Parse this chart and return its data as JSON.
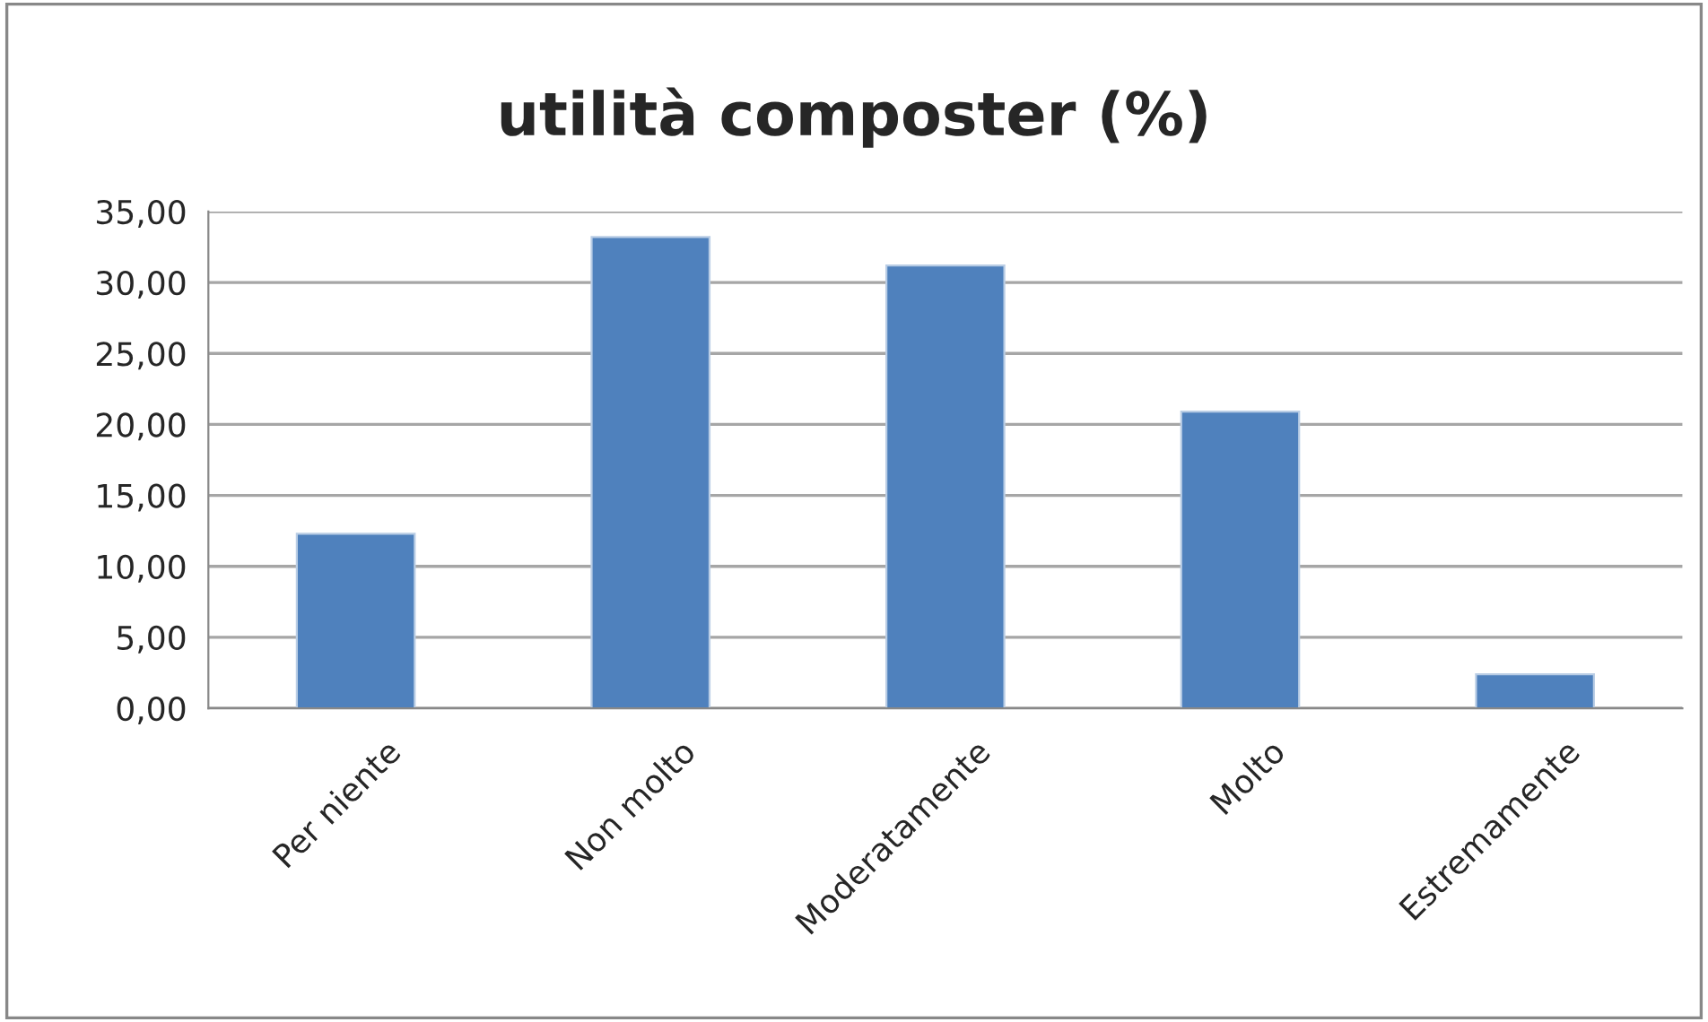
{
  "chart_data": {
    "type": "bar",
    "title": "utilità composter (%)",
    "categories": [
      "Per niente",
      "Non molto",
      "Moderatamente",
      "Molto",
      "Estremamente"
    ],
    "values": [
      12.3,
      33.2,
      31.2,
      20.9,
      2.4
    ],
    "color": "#4f81bd",
    "ylim": [
      0,
      35
    ],
    "yticks": [
      {
        "value": 0,
        "label": "0,00"
      },
      {
        "value": 5,
        "label": "5,00"
      },
      {
        "value": 10,
        "label": "10,00"
      },
      {
        "value": 15,
        "label": "15,00"
      },
      {
        "value": 20,
        "label": "20,00"
      },
      {
        "value": 25,
        "label": "25,00"
      },
      {
        "value": 30,
        "label": "30,00"
      },
      {
        "value": 35,
        "label": "35,00"
      }
    ],
    "grid": "y",
    "legend": false
  }
}
